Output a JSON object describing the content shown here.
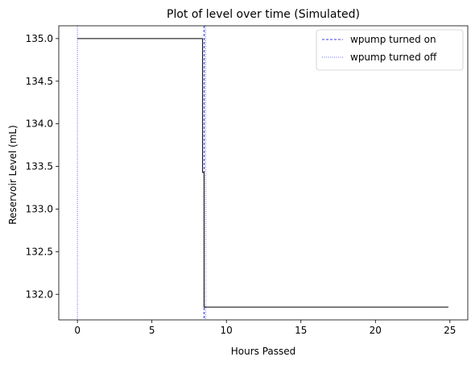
{
  "chart_data": {
    "type": "line",
    "title": "Plot of level over time (Simulated)",
    "xlabel": "Hours Passed",
    "ylabel": "Reservoir Level (mL)",
    "xlim": [
      -1.25,
      26.2
    ],
    "ylim": [
      131.7,
      135.15
    ],
    "xticks": [
      0,
      5,
      10,
      15,
      20,
      25
    ],
    "yticks": [
      132.0,
      132.5,
      133.0,
      133.5,
      134.0,
      134.5,
      135.0
    ],
    "ytick_labels": [
      "132.0",
      "132.5",
      "133.0",
      "133.5",
      "134.0",
      "134.5",
      "135.0"
    ],
    "grid": false,
    "legend_position": "top-right",
    "series": [
      {
        "x": [
          0,
          8.4,
          8.4,
          8.5,
          8.5,
          24.9
        ],
        "y": [
          135.0,
          135.0,
          133.43,
          133.43,
          131.85,
          131.85
        ],
        "color": "#000000"
      }
    ],
    "events": [
      {
        "name": "wpump turned on",
        "style": "dashed",
        "color": "#0000cc",
        "x": [
          8.5
        ]
      },
      {
        "name": "wpump turned off",
        "style": "dotted",
        "color": "#3333ff",
        "x": [
          0,
          8.6
        ]
      }
    ]
  }
}
